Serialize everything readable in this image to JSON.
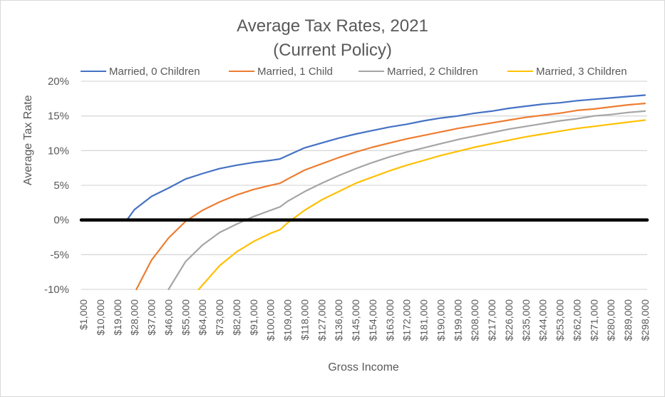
{
  "chart_data": {
    "type": "line",
    "title": "Average Tax Rates, 2021",
    "subtitle": "(Current Policy)",
    "xlabel": "Gross Income",
    "ylabel": "Average Tax Rate",
    "xlim": [
      1000,
      298000
    ],
    "ylim": [
      -10,
      20
    ],
    "y_ticks": [
      20,
      15,
      10,
      5,
      0,
      -5,
      -10
    ],
    "y_tick_labels": [
      "20%",
      "15%",
      "10%",
      "5%",
      "0%",
      "-5%",
      "-10%"
    ],
    "x_tick_labels": [
      "$1,000",
      "$10,000",
      "$19,000",
      "$28,000",
      "$37,000",
      "$46,000",
      "$55,000",
      "$64,000",
      "$73,000",
      "$82,000",
      "$91,000",
      "$100,000",
      "$109,000",
      "$118,000",
      "$127,000",
      "$136,000",
      "$145,000",
      "$154,000",
      "$163,000",
      "$172,000",
      "$181,000",
      "$190,000",
      "$199,000",
      "$208,000",
      "$217,000",
      "$226,000",
      "$235,000",
      "$244,000",
      "$253,000",
      "$262,000",
      "$271,000",
      "$280,000",
      "$289,000",
      "$298,000"
    ],
    "x_tick_values": [
      1000,
      10000,
      19000,
      28000,
      37000,
      46000,
      55000,
      64000,
      73000,
      82000,
      91000,
      100000,
      109000,
      118000,
      127000,
      136000,
      145000,
      154000,
      163000,
      172000,
      181000,
      190000,
      199000,
      208000,
      217000,
      226000,
      235000,
      244000,
      253000,
      262000,
      271000,
      280000,
      289000,
      298000
    ],
    "grid": true,
    "zero_line": {
      "value": 0,
      "color": "#000000"
    },
    "legend_position": "top",
    "series": [
      {
        "name": "Married, 0 Children",
        "color": "#4472c4",
        "x": [
          24000,
          28000,
          37000,
          46000,
          55000,
          64000,
          73000,
          82000,
          91000,
          100000,
          105000,
          109000,
          118000,
          127000,
          136000,
          145000,
          154000,
          163000,
          172000,
          181000,
          190000,
          199000,
          208000,
          217000,
          226000,
          235000,
          244000,
          253000,
          262000,
          271000,
          280000,
          289000,
          298000
        ],
        "y": [
          0,
          1.5,
          3.4,
          4.6,
          5.9,
          6.7,
          7.4,
          7.9,
          8.3,
          8.6,
          8.8,
          9.3,
          10.4,
          11.1,
          11.8,
          12.4,
          12.9,
          13.4,
          13.8,
          14.3,
          14.7,
          15.0,
          15.4,
          15.7,
          16.1,
          16.4,
          16.7,
          16.9,
          17.2,
          17.4,
          17.6,
          17.8,
          18.0
        ]
      },
      {
        "name": "Married, 1 Child",
        "color": "#ed7d31",
        "x": [
          29000,
          37000,
          46000,
          55000,
          64000,
          73000,
          82000,
          91000,
          100000,
          105000,
          109000,
          118000,
          127000,
          136000,
          145000,
          154000,
          163000,
          172000,
          181000,
          190000,
          199000,
          208000,
          217000,
          226000,
          235000,
          244000,
          253000,
          262000,
          271000,
          280000,
          289000,
          298000
        ],
        "y": [
          -10,
          -5.8,
          -2.6,
          -0.2,
          1.4,
          2.6,
          3.6,
          4.4,
          5.0,
          5.3,
          5.9,
          7.2,
          8.1,
          9.0,
          9.8,
          10.5,
          11.1,
          11.7,
          12.2,
          12.7,
          13.2,
          13.6,
          14.0,
          14.4,
          14.8,
          15.1,
          15.4,
          15.8,
          16.0,
          16.3,
          16.6,
          16.8
        ]
      },
      {
        "name": "Married, 2 Children",
        "color": "#a5a5a5",
        "x": [
          46000,
          55000,
          64000,
          73000,
          82000,
          91000,
          100000,
          105000,
          109000,
          118000,
          127000,
          136000,
          145000,
          154000,
          163000,
          172000,
          181000,
          190000,
          199000,
          208000,
          217000,
          226000,
          235000,
          244000,
          253000,
          262000,
          271000,
          280000,
          289000,
          298000
        ],
        "y": [
          -10,
          -6.0,
          -3.6,
          -1.8,
          -0.6,
          0.5,
          1.4,
          1.9,
          2.7,
          4.1,
          5.3,
          6.4,
          7.4,
          8.3,
          9.1,
          9.8,
          10.4,
          11.0,
          11.6,
          12.1,
          12.6,
          13.1,
          13.5,
          13.9,
          14.3,
          14.6,
          15.0,
          15.2,
          15.5,
          15.7
        ]
      },
      {
        "name": "Married, 3 Children",
        "color": "#ffc000",
        "x": [
          62000,
          73000,
          82000,
          91000,
          100000,
          105000,
          109000,
          118000,
          127000,
          136000,
          145000,
          154000,
          163000,
          172000,
          181000,
          190000,
          199000,
          208000,
          217000,
          226000,
          235000,
          244000,
          253000,
          262000,
          271000,
          280000,
          289000,
          298000
        ],
        "y": [
          -10,
          -6.6,
          -4.6,
          -3.1,
          -1.9,
          -1.4,
          -0.4,
          1.4,
          2.9,
          4.1,
          5.3,
          6.2,
          7.1,
          7.9,
          8.6,
          9.3,
          9.9,
          10.5,
          11.0,
          11.5,
          12.0,
          12.4,
          12.8,
          13.2,
          13.5,
          13.8,
          14.1,
          14.4
        ]
      }
    ]
  }
}
